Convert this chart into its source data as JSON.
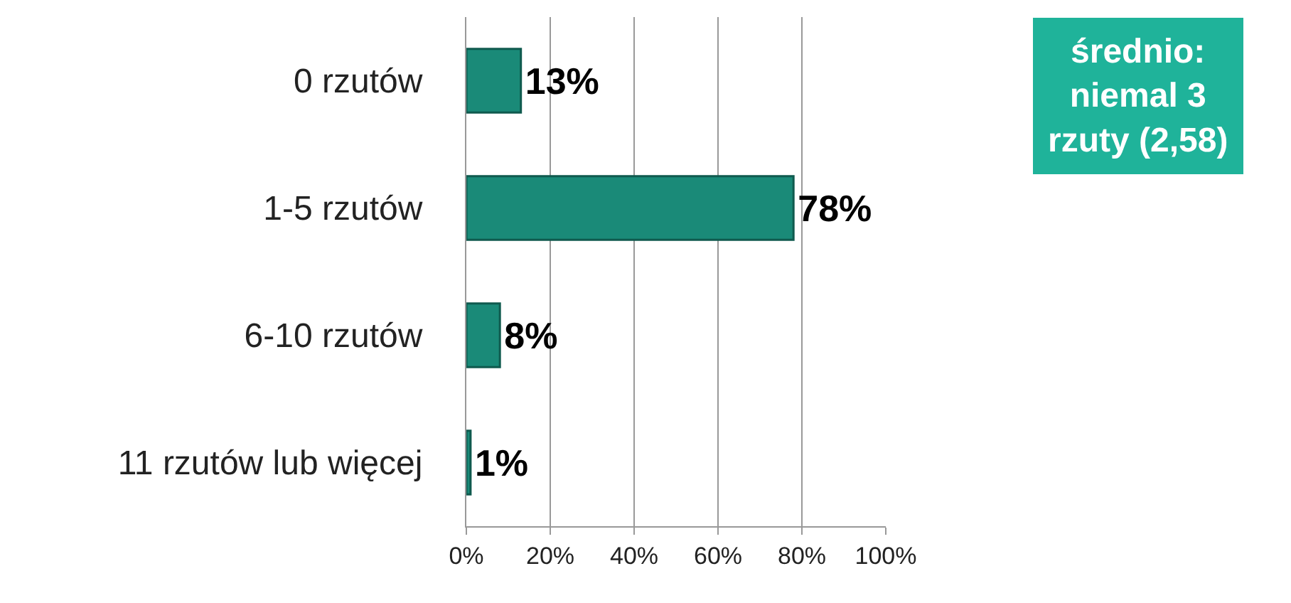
{
  "chart_data": {
    "type": "bar",
    "orientation": "horizontal",
    "categories": [
      "0 rzutów",
      "1-5 rzutów",
      "6-10 rzutów",
      "11 rzutów lub więcej"
    ],
    "values": [
      13,
      78,
      8,
      1
    ],
    "value_labels": [
      "13%",
      "78%",
      "8%",
      "1%"
    ],
    "color": "#1a8a78",
    "xlim": [
      0,
      100
    ],
    "xticks": [
      {
        "value": 0,
        "label": "0%"
      },
      {
        "value": 20,
        "label": "20%"
      },
      {
        "value": 40,
        "label": "40%"
      },
      {
        "value": 60,
        "label": "60%"
      },
      {
        "value": 80,
        "label": "80%"
      },
      {
        "value": 100,
        "label": "100%"
      }
    ],
    "grid": "x",
    "annotations": [
      "średnio:\nniemal 3\nrzuty (2,58)"
    ]
  }
}
